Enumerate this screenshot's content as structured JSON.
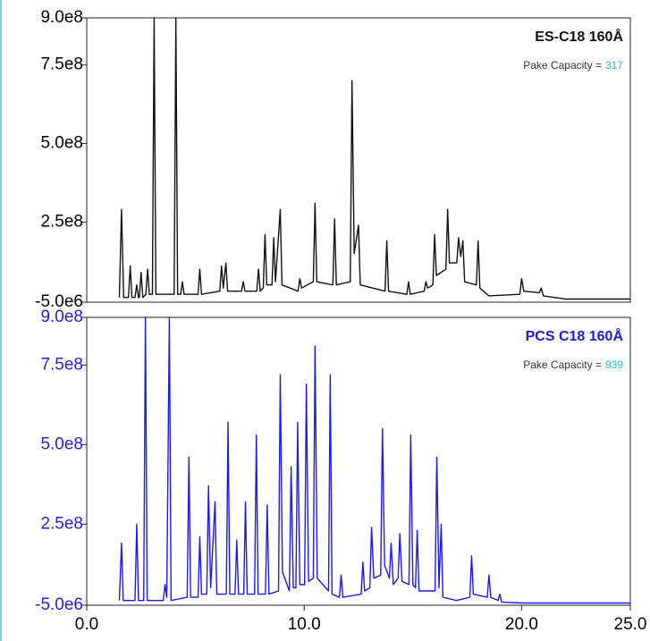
{
  "chart_data": [
    {
      "type": "line",
      "title": "ES-C18 160Å",
      "annotation": "Pake Capacity =",
      "capacity": 317,
      "xlim": [
        0,
        25
      ],
      "ylim": [
        -5000000,
        900000000
      ],
      "yticks": [
        {
          "value": -5000000,
          "label": "-5.0e6"
        },
        {
          "value": 250000000,
          "label": "2.5e8"
        },
        {
          "value": 500000000,
          "label": "5.0e8"
        },
        {
          "value": 750000000,
          "label": "7.5e8"
        },
        {
          "value": 900000000,
          "label": "9.0e8"
        }
      ],
      "tick_color": "#000000",
      "x": [
        1.5,
        1.6,
        1.7,
        1.92,
        2.0,
        2.08,
        2.22,
        2.3,
        2.38,
        2.42,
        2.5,
        2.58,
        2.72,
        2.8,
        2.88,
        3.02,
        3.1,
        3.18,
        4.02,
        4.1,
        4.18,
        4.32,
        4.4,
        4.48,
        5.12,
        5.2,
        5.28,
        6.12,
        6.2,
        6.28,
        6.4,
        6.48,
        7.12,
        7.2,
        7.28,
        7.82,
        7.9,
        7.98,
        8.12,
        8.2,
        8.28,
        8.52,
        8.6,
        8.68,
        8.9,
        8.98,
        9.72,
        9.8,
        9.88,
        10.42,
        10.5,
        10.58,
        11.32,
        11.4,
        11.48,
        12.12,
        12.2,
        12.3,
        12.5,
        12.58,
        13.72,
        13.8,
        13.88,
        14.72,
        14.8,
        14.88,
        15.52,
        15.6,
        15.68,
        15.92,
        16.0,
        16.08,
        16.52,
        16.6,
        16.68,
        17.02,
        17.1,
        17.2,
        17.3,
        17.38,
        17.92,
        18.0,
        18.08,
        18.5,
        19.92,
        20.0,
        20.1,
        20.82,
        20.9,
        21.0,
        22,
        25
      ],
      "series": [
        {
          "name": "ES-C18 160Å",
          "color": "#111111",
          "values": [
            10000000.0,
            290000000.0,
            10000000.0,
            10000000.0,
            110000000.0,
            10000000.0,
            10000000.0,
            50000000.0,
            10000000.0,
            10000000.0,
            90000000.0,
            10000000.0,
            20000000.0,
            100000000.0,
            20000000.0,
            20000000.0,
            900000000.0,
            20000000.0,
            20000000.0,
            900000000.0,
            20000000.0,
            20000000.0,
            60000000.0,
            20000000.0,
            20000000.0,
            100000000.0,
            20000000.0,
            30000000.0,
            110000000.0,
            40000000.0,
            120000000.0,
            30000000.0,
            30000000.0,
            60000000.0,
            30000000.0,
            30000000.0,
            100000000.0,
            30000000.0,
            40000000.0,
            210000000.0,
            50000000.0,
            50000000.0,
            200000000.0,
            60000000.0,
            290000000.0,
            50000000.0,
            30000000.0,
            70000000.0,
            40000000.0,
            60000000.0,
            310000000.0,
            60000000.0,
            50000000.0,
            260000000.0,
            50000000.0,
            60000000.0,
            700000000.0,
            150000000.0,
            240000000.0,
            50000000.0,
            30000000.0,
            190000000.0,
            30000000.0,
            20000000.0,
            60000000.0,
            20000000.0,
            30000000.0,
            60000000.0,
            40000000.0,
            50000000.0,
            210000000.0,
            80000000.0,
            100000000.0,
            290000000.0,
            120000000.0,
            120000000.0,
            200000000.0,
            140000000.0,
            190000000.0,
            60000000.0,
            50000000.0,
            190000000.0,
            40000000.0,
            15000000.0,
            20000000.0,
            70000000.0,
            30000000.0,
            25000000.0,
            40000000.0,
            15000000.0,
            5000000.0,
            5000000.0
          ]
        }
      ]
    },
    {
      "type": "line",
      "title": "PCS C18 160Å",
      "annotation": "Pake Capacity =",
      "capacity": 939,
      "xlim": [
        0,
        25
      ],
      "ylim": [
        -5000000,
        900000000
      ],
      "yticks": [
        {
          "value": -5000000,
          "label": "-5.0e6"
        },
        {
          "value": 250000000,
          "label": "2.5e8"
        },
        {
          "value": 500000000,
          "label": "5.0e8"
        },
        {
          "value": 750000000,
          "label": "7.5e8"
        },
        {
          "value": 900000000,
          "label": "9.0e8"
        }
      ],
      "xticks": [
        {
          "value": 0,
          "label": "0.0"
        },
        {
          "value": 10,
          "label": "10.0"
        },
        {
          "value": 20,
          "label": "20.0"
        },
        {
          "value": 25,
          "label": "25.0"
        }
      ],
      "tick_color": "#2222dd",
      "x": [
        1.5,
        1.6,
        1.68,
        2.22,
        2.3,
        2.38,
        2.62,
        2.7,
        2.78,
        3.52,
        3.6,
        3.68,
        3.8,
        3.88,
        4.62,
        4.7,
        4.78,
        5.12,
        5.2,
        5.28,
        5.52,
        5.6,
        5.7,
        5.9,
        5.98,
        6.42,
        6.5,
        6.58,
        6.82,
        6.9,
        6.98,
        7.22,
        7.3,
        7.38,
        7.72,
        7.8,
        7.88,
        8.22,
        8.3,
        8.38,
        8.82,
        8.9,
        9.0,
        9.32,
        9.4,
        9.5,
        9.62,
        9.7,
        9.8,
        10.02,
        10.1,
        10.2,
        10.42,
        10.5,
        10.6,
        11.12,
        11.2,
        11.28,
        11.62,
        11.7,
        11.78,
        12.62,
        12.7,
        12.78,
        13.02,
        13.1,
        13.2,
        13.52,
        13.6,
        13.7,
        13.92,
        14.0,
        14.1,
        14.32,
        14.4,
        14.5,
        14.82,
        14.9,
        15.0,
        15.12,
        15.2,
        15.28,
        16.02,
        16.1,
        16.2,
        16.3,
        16.38,
        17.0,
        17.62,
        17.7,
        17.78,
        18.42,
        18.5,
        18.58,
        18.92,
        19.0,
        19.08,
        20,
        25
      ],
      "series": [
        {
          "name": "PCS C18 160Å",
          "color": "#1a1aee",
          "values": [
            10000000.0,
            190000000.0,
            10000000.0,
            10000000.0,
            250000000.0,
            10000000.0,
            10000000.0,
            900000000.0,
            10000000.0,
            10000000.0,
            60000000.0,
            20000000.0,
            900000000.0,
            10000000.0,
            20000000.0,
            460000000.0,
            20000000.0,
            20000000.0,
            210000000.0,
            30000000.0,
            30000000.0,
            370000000.0,
            50000000.0,
            320000000.0,
            30000000.0,
            30000000.0,
            570000000.0,
            30000000.0,
            30000000.0,
            200000000.0,
            30000000.0,
            30000000.0,
            320000000.0,
            30000000.0,
            30000000.0,
            530000000.0,
            30000000.0,
            30000000.0,
            310000000.0,
            30000000.0,
            40000000.0,
            720000000.0,
            100000000.0,
            40000000.0,
            430000000.0,
            50000000.0,
            50000000.0,
            570000000.0,
            60000000.0,
            60000000.0,
            690000000.0,
            70000000.0,
            80000000.0,
            810000000.0,
            80000000.0,
            40000000.0,
            720000000.0,
            30000000.0,
            20000000.0,
            90000000.0,
            20000000.0,
            30000000.0,
            130000000.0,
            40000000.0,
            50000000.0,
            240000000.0,
            80000000.0,
            90000000.0,
            550000000.0,
            120000000.0,
            80000000.0,
            190000000.0,
            60000000.0,
            80000000.0,
            220000000.0,
            70000000.0,
            60000000.0,
            530000000.0,
            60000000.0,
            50000000.0,
            230000000.0,
            40000000.0,
            40000000.0,
            460000000.0,
            50000000.0,
            250000000.0,
            20000000.0,
            10000000.0,
            20000000.0,
            150000000.0,
            30000000.0,
            20000000.0,
            90000000.0,
            20000000.0,
            10000000.0,
            30000000.0,
            5000000.0,
            2000000.0,
            2000000.0
          ]
        }
      ]
    }
  ]
}
